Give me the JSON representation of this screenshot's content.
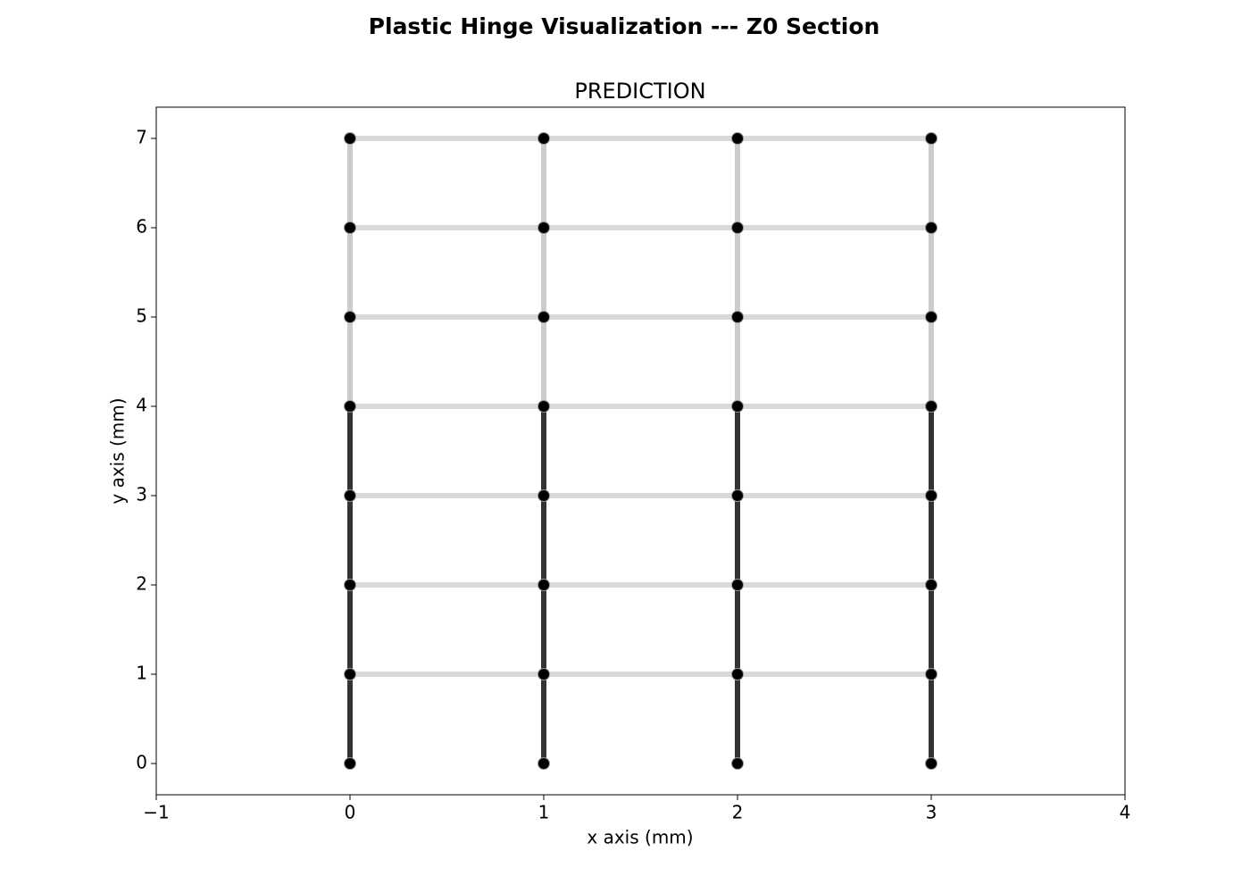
{
  "chart_data": {
    "type": "line",
    "title": "Plastic Hinge Visualization --- Z0 Section",
    "subtitle": "PREDICTION",
    "x_label": "x axis (mm)",
    "y_label": "y axis (mm)",
    "xlim": [
      -1,
      4
    ],
    "ylim": [
      -0.35,
      7.35
    ],
    "xticks": [
      {
        "value": -1,
        "label": "−1"
      },
      0,
      1,
      2,
      3,
      4
    ],
    "yticks": [
      0,
      1,
      2,
      3,
      4,
      5,
      6,
      7
    ],
    "series": [
      {
        "color": "#cccccc",
        "x": [
          0,
          0,
          0,
          0
        ],
        "values": [
          4,
          5,
          6,
          7
        ]
      },
      {
        "color": "#cccccc",
        "x": [
          1,
          1,
          1,
          1
        ],
        "values": [
          4,
          5,
          6,
          7
        ]
      },
      {
        "color": "#cccccc",
        "x": [
          2,
          2,
          2,
          2
        ],
        "values": [
          4,
          5,
          6,
          7
        ]
      },
      {
        "color": "#cccccc",
        "x": [
          3,
          3,
          3,
          3
        ],
        "values": [
          4,
          5,
          6,
          7
        ]
      },
      {
        "color": "#d9d9d9",
        "x": [
          0,
          1,
          2,
          3
        ],
        "values": [
          1,
          1,
          1,
          1
        ]
      },
      {
        "color": "#d9d9d9",
        "x": [
          0,
          1,
          2,
          3
        ],
        "values": [
          2,
          2,
          2,
          2
        ]
      },
      {
        "color": "#d9d9d9",
        "x": [
          0,
          1,
          2,
          3
        ],
        "values": [
          3,
          3,
          3,
          3
        ]
      },
      {
        "color": "#d9d9d9",
        "x": [
          0,
          1,
          2,
          3
        ],
        "values": [
          4,
          4,
          4,
          4
        ]
      },
      {
        "color": "#d9d9d9",
        "x": [
          0,
          1,
          2,
          3
        ],
        "values": [
          5,
          5,
          5,
          5
        ]
      },
      {
        "color": "#d9d9d9",
        "x": [
          0,
          1,
          2,
          3
        ],
        "values": [
          6,
          6,
          6,
          6
        ]
      },
      {
        "color": "#d9d9d9",
        "x": [
          0,
          1,
          2,
          3
        ],
        "values": [
          7,
          7,
          7,
          7
        ]
      },
      {
        "color": "#333333",
        "x": [
          0,
          0,
          0,
          0,
          0
        ],
        "values": [
          0,
          1,
          2,
          3,
          4
        ]
      },
      {
        "color": "#333333",
        "x": [
          1,
          1,
          1,
          1,
          1
        ],
        "values": [
          0,
          1,
          2,
          3,
          4
        ]
      },
      {
        "color": "#333333",
        "x": [
          2,
          2,
          2,
          2,
          2
        ],
        "values": [
          0,
          1,
          2,
          3,
          4
        ]
      },
      {
        "color": "#333333",
        "x": [
          3,
          3,
          3,
          3,
          3
        ],
        "values": [
          0,
          1,
          2,
          3,
          4
        ]
      }
    ],
    "nodes": {
      "color": "#000000",
      "x": [
        0,
        0,
        0,
        0,
        0,
        0,
        0,
        0,
        1,
        1,
        1,
        1,
        1,
        1,
        1,
        1,
        2,
        2,
        2,
        2,
        2,
        2,
        2,
        2,
        3,
        3,
        3,
        3,
        3,
        3,
        3,
        3
      ],
      "values": [
        0,
        1,
        2,
        3,
        4,
        5,
        6,
        7,
        0,
        1,
        2,
        3,
        4,
        5,
        6,
        7,
        0,
        1,
        2,
        3,
        4,
        5,
        6,
        7,
        0,
        1,
        2,
        3,
        4,
        5,
        6,
        7
      ]
    }
  }
}
